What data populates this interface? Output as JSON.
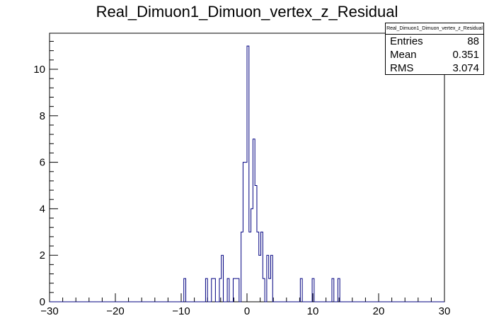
{
  "title": "Real_Dimuon1_Dimuon_vertex_z_Residual",
  "stats": {
    "name": "Real_Dimuon1_Dimuon_vertex_z_Residual",
    "entries_label": "Entries",
    "entries_value": "88",
    "mean_label": "Mean",
    "mean_value": "0.351",
    "rms_label": "RMS",
    "rms_value": "3.074"
  },
  "chart_data": {
    "type": "bar",
    "title": "Real_Dimuon1_Dimuon_vertex_z_Residual",
    "xlabel": "",
    "ylabel": "",
    "xlim": [
      -30,
      30
    ],
    "ylim": [
      0,
      11.55
    ],
    "bin_width": 0.3,
    "x_ticks": [
      -30,
      -20,
      -10,
      0,
      10,
      20,
      30
    ],
    "y_ticks": [
      0,
      2,
      4,
      6,
      8,
      10
    ],
    "line_color": "#000080",
    "bins": [
      {
        "x": -9.6,
        "y": 1
      },
      {
        "x": -6.3,
        "y": 1
      },
      {
        "x": -5.4,
        "y": 1
      },
      {
        "x": -5.1,
        "y": 1
      },
      {
        "x": -4.2,
        "y": 1
      },
      {
        "x": -3.9,
        "y": 2
      },
      {
        "x": -3.0,
        "y": 1
      },
      {
        "x": -2.1,
        "y": 1
      },
      {
        "x": -1.8,
        "y": 1
      },
      {
        "x": -1.5,
        "y": 1
      },
      {
        "x": -0.9,
        "y": 3
      },
      {
        "x": -0.6,
        "y": 6
      },
      {
        "x": -0.3,
        "y": 6
      },
      {
        "x": 0.0,
        "y": 11
      },
      {
        "x": 0.3,
        "y": 3
      },
      {
        "x": 0.6,
        "y": 4
      },
      {
        "x": 0.9,
        "y": 7
      },
      {
        "x": 1.2,
        "y": 5
      },
      {
        "x": 1.5,
        "y": 3
      },
      {
        "x": 1.8,
        "y": 2
      },
      {
        "x": 2.1,
        "y": 3
      },
      {
        "x": 2.4,
        "y": 1
      },
      {
        "x": 3.0,
        "y": 2
      },
      {
        "x": 3.3,
        "y": 1
      },
      {
        "x": 3.6,
        "y": 2
      },
      {
        "x": 8.1,
        "y": 1
      },
      {
        "x": 9.9,
        "y": 1
      },
      {
        "x": 12.9,
        "y": 1
      },
      {
        "x": 13.8,
        "y": 1
      }
    ]
  }
}
